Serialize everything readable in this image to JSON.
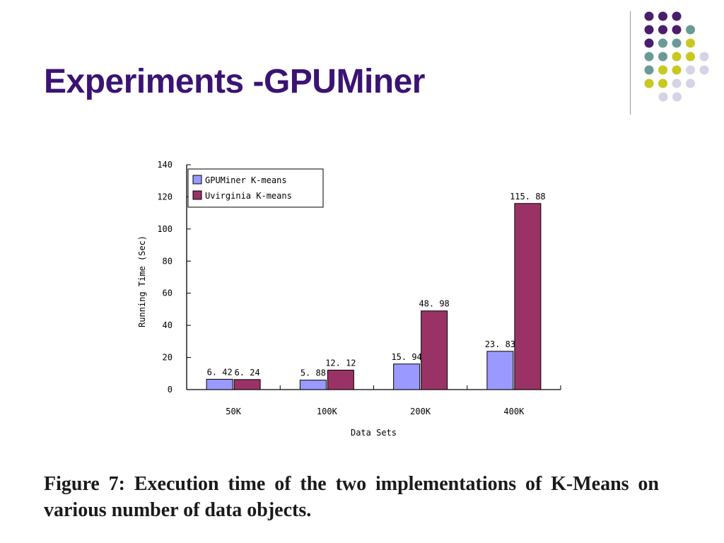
{
  "slide": {
    "title": "Experiments -GPUMiner",
    "caption": "Figure 7:  Execution time of the two implementations of K-Means on various number of data objects."
  },
  "decoration": {
    "colors": [
      "#4a1e6b",
      "#6a9a98",
      "#c8c820",
      "#d4d4e6"
    ]
  },
  "chart_data": {
    "type": "bar",
    "categories": [
      "50K",
      "100K",
      "200K",
      "400K"
    ],
    "series": [
      {
        "name": "GPUMiner K-means",
        "values": [
          6.42,
          5.88,
          15.94,
          23.83
        ],
        "labels": [
          "6. 42",
          "5. 88",
          "15. 94",
          "23. 83"
        ],
        "color": "#9999ff"
      },
      {
        "name": "Uvirginia K-means",
        "values": [
          6.24,
          12.12,
          48.98,
          115.88
        ],
        "labels": [
          "6. 24",
          "12. 12",
          "48. 98",
          "115. 88"
        ],
        "color": "#993366"
      }
    ],
    "xlabel": "Data Sets",
    "ylabel": "Running Time (Sec)",
    "ylim": [
      0,
      140
    ],
    "yticks": [
      0,
      20,
      40,
      60,
      80,
      100,
      120,
      140
    ],
    "grid": false,
    "legend": "top-left"
  }
}
